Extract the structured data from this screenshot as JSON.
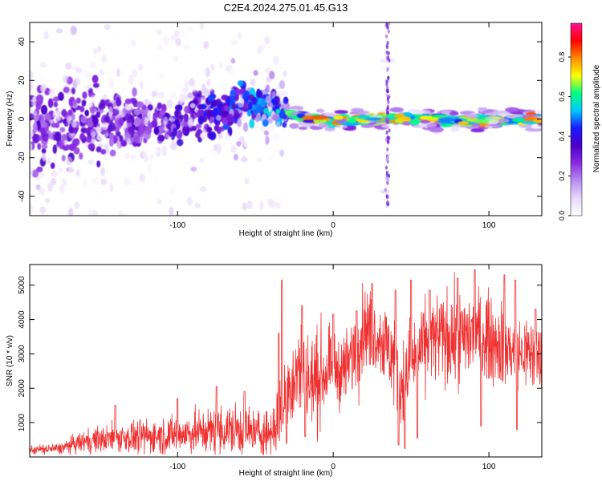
{
  "figure": {
    "title": "C2E4.2024.275.01.45.G13"
  },
  "colors": {
    "snr_line": "#f03030",
    "axis": "#000000",
    "background": "#ffffff",
    "colormap": [
      "#ffffff",
      "#e6d8fb",
      "#b98cf0",
      "#8a2be2",
      "#4b00c8",
      "#1a1aff",
      "#00c8ff",
      "#00ff80",
      "#ffff00",
      "#ff8c00",
      "#ff0000",
      "#ff1493"
    ]
  },
  "chart_data": [
    {
      "type": "heatmap",
      "title": "",
      "xlabel": "Height of straight line (km)",
      "ylabel": "Frequency (Hz)",
      "xlim": [
        -195,
        134
      ],
      "ylim": [
        -50,
        50
      ],
      "x_ticks": [
        -100,
        0,
        100
      ],
      "x_tick_labels": [
        "-100",
        "0",
        "100"
      ],
      "y_ticks": [
        -40,
        -20,
        0,
        20,
        40
      ],
      "y_tick_labels": [
        "-40",
        "-20",
        "0",
        "20",
        "40"
      ],
      "colorbar": {
        "label": "Normalized spectral amplitude",
        "range": [
          0,
          0.97
        ],
        "ticks": [
          0.0,
          0.2,
          0.4,
          0.6,
          0.8
        ],
        "tick_labels": [
          "0.0",
          "0.2",
          "0.4",
          "0.6",
          "0.8"
        ]
      },
      "ridge": {
        "x": [
          -170,
          -140,
          -120,
          -100,
          -80,
          -60,
          -50,
          -40,
          -30,
          -20,
          0,
          20,
          40,
          60,
          80,
          100,
          120,
          134
        ],
        "frequency": [
          -3,
          -3,
          -2,
          0,
          3,
          6,
          9,
          7,
          3,
          1,
          -1,
          0,
          0,
          0,
          -1,
          0,
          0,
          0
        ],
        "amplitude": [
          0.35,
          0.35,
          0.35,
          0.4,
          0.45,
          0.5,
          0.55,
          0.55,
          0.65,
          0.8,
          0.85,
          0.85,
          0.8,
          0.85,
          0.75,
          0.85,
          0.85,
          0.9
        ]
      }
    },
    {
      "type": "line",
      "title": "",
      "xlabel": "Height of straight line (km)",
      "ylabel": "SNR (10 * v/v)",
      "xlim": [
        -195,
        134
      ],
      "ylim": [
        0,
        5600
      ],
      "x_ticks": [
        -100,
        0,
        100
      ],
      "x_tick_labels": [
        "-100",
        "0",
        "100"
      ],
      "y_ticks": [
        1000,
        2000,
        3000,
        4000,
        5000
      ],
      "y_tick_labels": [
        "1000",
        "2000",
        "3000",
        "4000",
        "5000"
      ],
      "series": [
        {
          "name": "",
          "envelope_x": [
            -195,
            -175,
            -160,
            -140,
            -120,
            -100,
            -80,
            -60,
            -50,
            -40,
            -35,
            -30,
            -25,
            -20,
            -15,
            -10,
            0,
            5,
            10,
            15,
            20,
            30,
            40,
            45,
            50,
            60,
            70,
            80,
            90,
            100,
            110,
            120,
            134
          ],
          "center": [
            200,
            250,
            450,
            550,
            600,
            650,
            750,
            800,
            700,
            700,
            1100,
            1800,
            2400,
            2600,
            2100,
            2300,
            2600,
            2500,
            2700,
            3300,
            3800,
            3500,
            2800,
            2000,
            2700,
            3300,
            3500,
            3400,
            3600,
            3500,
            3200,
            3000,
            3000
          ],
          "spread": [
            120,
            150,
            300,
            400,
            450,
            500,
            600,
            700,
            600,
            700,
            900,
            1100,
            1200,
            1400,
            1300,
            1300,
            900,
            900,
            1000,
            1200,
            1100,
            1000,
            1300,
            1300,
            1200,
            1100,
            1200,
            1200,
            1200,
            1100,
            1100,
            1000,
            1000
          ],
          "peaks": [
            [
              -140,
              1500
            ],
            [
              -100,
              1700
            ],
            [
              -75,
              2050
            ],
            [
              -57,
              1900
            ],
            [
              -35,
              3600
            ],
            [
              -33,
              5150
            ],
            [
              -20,
              4400
            ],
            [
              0,
              4150
            ],
            [
              15,
              4250
            ],
            [
              25,
              5050
            ],
            [
              40,
              4850
            ],
            [
              50,
              5150
            ],
            [
              62,
              4850
            ],
            [
              80,
              5200
            ],
            [
              91,
              5450
            ],
            [
              110,
              5300
            ],
            [
              117,
              5150
            ],
            [
              130,
              4300
            ]
          ],
          "troughs": [
            [
              -30,
              400
            ],
            [
              -18,
              600
            ],
            [
              42,
              350
            ],
            [
              46,
              250
            ],
            [
              54,
              550
            ],
            [
              95,
              900
            ],
            [
              118,
              800
            ]
          ]
        }
      ]
    }
  ]
}
